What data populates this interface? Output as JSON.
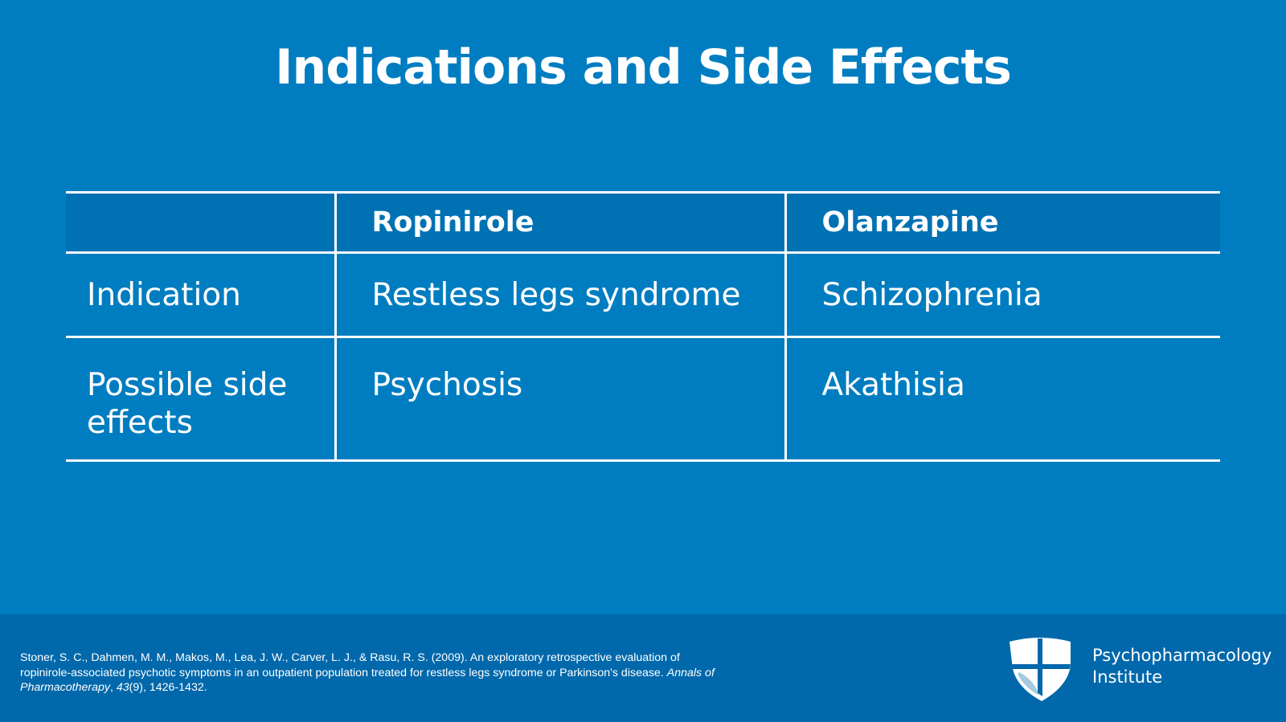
{
  "slide": {
    "title": "Indications and Side Effects"
  },
  "table": {
    "headers": [
      "",
      "Ropinirole",
      "Olanzapine"
    ],
    "rows": [
      {
        "label": "Indication",
        "ropinirole": "Restless legs syndrome",
        "olanzapine": "Schizophrenia"
      },
      {
        "label": "Possible side effects",
        "ropinirole": "Psychosis",
        "olanzapine": "Akathisia"
      }
    ]
  },
  "footer": {
    "citation": {
      "authors_text": "Stoner, S. C., Dahmen, M. M., Makos, M., Lea, J. W., Carver, L. J., & Rasu, R. S. (2009). An exploratory retrospective evaluation of ropinirole-associated psychotic symptoms in an outpatient population treated for restless legs syndrome or Parkinson's disease.",
      "journal": "Annals of Pharmacotherapy",
      "separator": ", ",
      "volume": "43",
      "issue_pages": "(9), 1426-1432."
    },
    "logo": {
      "line1": "Psychopharmacology",
      "line2": "Institute"
    }
  },
  "colors": {
    "background": "#007dc0",
    "header_row": "#0071b3",
    "footer": "#0068ab",
    "text": "#ffffff"
  }
}
